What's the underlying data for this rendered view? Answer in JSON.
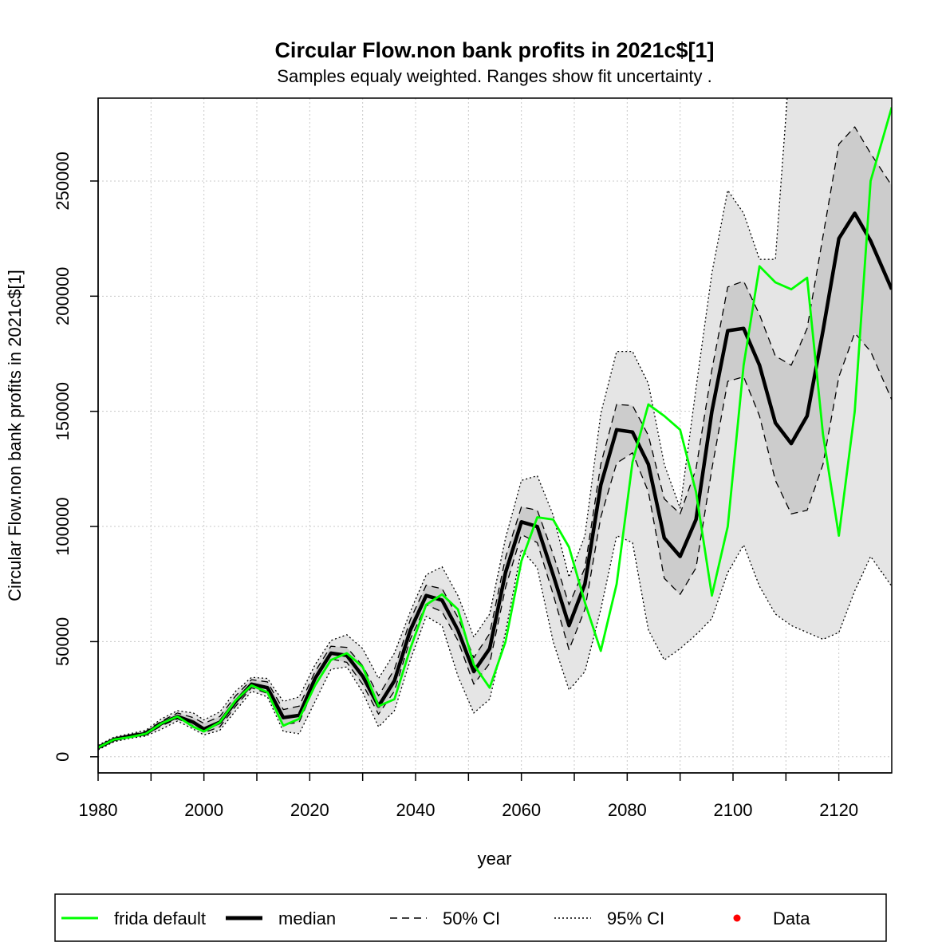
{
  "chart_data": {
    "type": "line",
    "title": "Circular Flow.non bank profits in 2021c$[1]",
    "subtitle": "Samples equaly weighted. Ranges show  fit uncertainty .",
    "xlabel": "year",
    "ylabel": "Circular Flow.non bank profits in 2021c$[1]",
    "xlim": [
      1980,
      2130
    ],
    "ylim": [
      -7000,
      286000
    ],
    "x_ticks": [
      1980,
      2000,
      2020,
      2040,
      2060,
      2080,
      2100,
      2120
    ],
    "x_tick_labels": [
      "1980",
      "2000",
      "2020",
      "2040",
      "2060",
      "2080",
      "2100",
      "2120"
    ],
    "y_ticks": [
      0,
      50000,
      100000,
      150000,
      200000,
      250000
    ],
    "y_tick_labels": [
      "0",
      "50000",
      "100000",
      "150000",
      "200000",
      "250000"
    ],
    "grid": true,
    "legend_position": "bottom",
    "legend": [
      {
        "label": "frida default",
        "style": "solid",
        "color": "#00ff00"
      },
      {
        "label": "median",
        "style": "solid-thick",
        "color": "#000000"
      },
      {
        "label": "50% CI",
        "style": "dashed",
        "color": "#000000"
      },
      {
        "label": "95% CI",
        "style": "dotted",
        "color": "#000000"
      },
      {
        "label": "Data",
        "style": "point",
        "color": "#ff0000"
      }
    ],
    "colors": {
      "band95": "#e5e5e5",
      "band50": "#cccccc",
      "frida": "#00ff00",
      "median": "#000000",
      "data": "#ff0000"
    },
    "series": [
      {
        "name": "median",
        "x": [
          1980,
          1983,
          1986,
          1989,
          1992,
          1995,
          1998,
          2000,
          2003,
          2006,
          2009,
          2012,
          2015,
          2018,
          2021,
          2024,
          2027,
          2030,
          2033,
          2036,
          2039,
          2042,
          2045,
          2048,
          2051,
          2054,
          2057,
          2060,
          2063,
          2066,
          2069,
          2072,
          2075,
          2078,
          2081,
          2084,
          2087,
          2090,
          2093,
          2096,
          2099,
          2102,
          2105,
          2108,
          2111,
          2114,
          2117,
          2120,
          2123,
          2126,
          2130
        ],
        "y": [
          4000,
          7500,
          9000,
          10000,
          14500,
          17500,
          15000,
          12000,
          15000,
          24000,
          31500,
          30000,
          17000,
          18000,
          34000,
          45000,
          44000,
          35000,
          22000,
          33000,
          55000,
          70000,
          68000,
          55000,
          37000,
          47000,
          80000,
          102000,
          100000,
          79000,
          57000,
          75000,
          118000,
          142000,
          141000,
          127000,
          95000,
          87000,
          103000,
          150000,
          185000,
          186000,
          170000,
          145000,
          136000,
          148000,
          185000,
          225000,
          236000,
          224000,
          203000
        ]
      },
      {
        "name": "50% CI upper",
        "x": [
          1980,
          1983,
          1986,
          1989,
          1992,
          1995,
          1998,
          2000,
          2003,
          2006,
          2009,
          2012,
          2015,
          2018,
          2021,
          2024,
          2027,
          2030,
          2033,
          2036,
          2039,
          2042,
          2045,
          2048,
          2051,
          2054,
          2057,
          2060,
          2063,
          2066,
          2069,
          2072,
          2075,
          2078,
          2081,
          2084,
          2087,
          2090,
          2093,
          2096,
          2099,
          2102,
          2105,
          2108,
          2111,
          2114,
          2117,
          2120,
          2123,
          2126,
          2130
        ],
        "y": [
          4500,
          8000,
          9500,
          11000,
          15500,
          19000,
          17000,
          14500,
          17500,
          26500,
          33500,
          32500,
          20500,
          22000,
          37000,
          48000,
          47500,
          39500,
          26500,
          38000,
          59500,
          74500,
          73000,
          60500,
          43000,
          53500,
          86500,
          108500,
          107000,
          88000,
          66000,
          82000,
          127000,
          153000,
          152500,
          139500,
          112000,
          105500,
          125000,
          168000,
          204000,
          206500,
          192000,
          174000,
          170000,
          186000,
          226000,
          266000,
          273500,
          262000,
          248000
        ]
      },
      {
        "name": "50% CI lower",
        "x": [
          1980,
          1983,
          1986,
          1989,
          1992,
          1995,
          1998,
          2000,
          2003,
          2006,
          2009,
          2012,
          2015,
          2018,
          2021,
          2024,
          2027,
          2030,
          2033,
          2036,
          2039,
          2042,
          2045,
          2048,
          2051,
          2054,
          2057,
          2060,
          2063,
          2066,
          2069,
          2072,
          2075,
          2078,
          2081,
          2084,
          2087,
          2090,
          2093,
          2096,
          2099,
          2102,
          2105,
          2108,
          2111,
          2114,
          2117,
          2120,
          2123,
          2126,
          2130
        ],
        "y": [
          3500,
          7000,
          8500,
          9500,
          13500,
          16500,
          13500,
          10500,
          13000,
          22000,
          30000,
          27500,
          14000,
          15000,
          31000,
          42500,
          41000,
          31500,
          18500,
          28500,
          51000,
          66000,
          63000,
          50500,
          31500,
          40500,
          73500,
          96500,
          93000,
          70500,
          46500,
          64000,
          104000,
          127500,
          132000,
          115000,
          77500,
          70500,
          82000,
          125000,
          163000,
          165000,
          148000,
          120000,
          105500,
          107000,
          127000,
          165000,
          184000,
          176000,
          155000
        ]
      },
      {
        "name": "95% CI upper",
        "x": [
          1980,
          1983,
          1986,
          1989,
          1992,
          1995,
          1998,
          2000,
          2003,
          2006,
          2009,
          2012,
          2015,
          2018,
          2021,
          2024,
          2027,
          2030,
          2033,
          2036,
          2039,
          2042,
          2045,
          2048,
          2051,
          2054,
          2057,
          2060,
          2063,
          2066,
          2069,
          2072,
          2075,
          2078,
          2081,
          2084,
          2087,
          2090,
          2093,
          2096,
          2099,
          2102,
          2105,
          2108,
          2111,
          2114,
          2117,
          2120,
          2123,
          2126,
          2130
        ],
        "y": [
          5000,
          8500,
          10000,
          11500,
          16500,
          20000,
          19000,
          16000,
          19500,
          28500,
          34500,
          34000,
          24000,
          26000,
          40000,
          50500,
          53000,
          47000,
          34000,
          45000,
          63000,
          79000,
          82500,
          70000,
          52000,
          62000,
          95000,
          120000,
          122000,
          105000,
          78000,
          96000,
          149000,
          176000,
          176000,
          162000,
          127000,
          108000,
          160000,
          210000,
          246000,
          236000,
          216000,
          216000,
          310000,
          310000,
          310000,
          310000,
          310000,
          310000,
          310000
        ]
      },
      {
        "name": "95% CI lower",
        "x": [
          1980,
          1983,
          1986,
          1989,
          1992,
          1995,
          1998,
          2000,
          2003,
          2006,
          2009,
          2012,
          2015,
          2018,
          2021,
          2024,
          2027,
          2030,
          2033,
          2036,
          2039,
          2042,
          2045,
          2048,
          2051,
          2054,
          2057,
          2060,
          2063,
          2066,
          2069,
          2072,
          2075,
          2078,
          2081,
          2084,
          2087,
          2090,
          2093,
          2096,
          2099,
          2102,
          2105,
          2108,
          2111,
          2114,
          2117,
          2120,
          2123,
          2126,
          2130
        ],
        "y": [
          3000,
          6500,
          8000,
          9000,
          12000,
          15500,
          12000,
          9500,
          11500,
          20000,
          28500,
          26000,
          11000,
          10000,
          24000,
          38000,
          39000,
          28000,
          13000,
          20000,
          42000,
          61000,
          57000,
          35000,
          19000,
          25000,
          54000,
          90000,
          82000,
          50000,
          29000,
          37000,
          64000,
          96000,
          93000,
          55000,
          42000,
          47000,
          53000,
          60000,
          80000,
          92000,
          74000,
          62000,
          57000,
          54000,
          51000,
          54000,
          72000,
          87000,
          74000
        ]
      },
      {
        "name": "frida default",
        "x": [
          1980,
          1983,
          1986,
          1989,
          1992,
          1995,
          1998,
          2000,
          2003,
          2006,
          2009,
          2012,
          2015,
          2018,
          2021,
          2024,
          2027,
          2030,
          2033,
          2036,
          2039,
          2042,
          2045,
          2048,
          2051,
          2054,
          2057,
          2060,
          2063,
          2066,
          2069,
          2072,
          2075,
          2078,
          2081,
          2084,
          2087,
          2090,
          2093,
          2096,
          2099,
          2102,
          2105,
          2108,
          2111,
          2114,
          2117,
          2120,
          2123,
          2126,
          2130
        ],
        "y": [
          4000,
          7500,
          8500,
          10000,
          14500,
          17500,
          13000,
          11000,
          15000,
          24500,
          31000,
          28000,
          13500,
          16500,
          31000,
          42000,
          45000,
          39000,
          22000,
          25000,
          47000,
          66000,
          70500,
          64000,
          40000,
          30000,
          50000,
          85000,
          104000,
          103000,
          91000,
          67000,
          46000,
          75000,
          128000,
          153000,
          148000,
          142000,
          115000,
          70000,
          100000,
          170000,
          213000,
          206000,
          203000,
          208000,
          140000,
          96000,
          150000,
          250000,
          282000
        ]
      }
    ]
  }
}
